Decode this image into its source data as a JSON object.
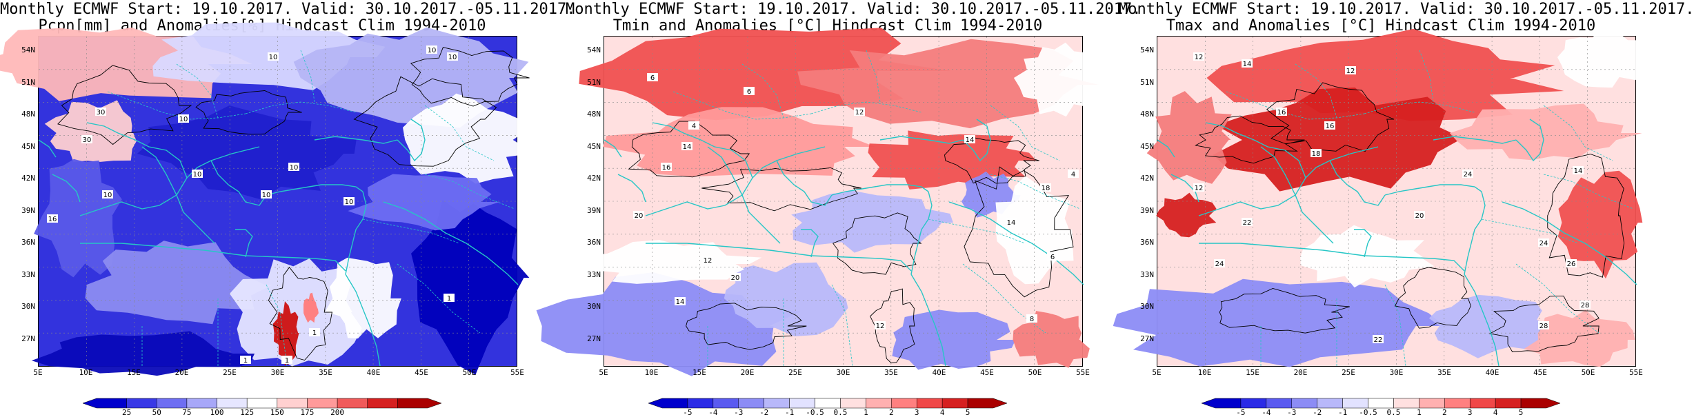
{
  "panels": [
    {
      "id": "pcpn",
      "title_line1": "Monthly ECMWF Start: 19.10.2017. Valid: 30.10.2017.-05.11.2017.",
      "title_line2": "Pcpn[mm] and Anomalies[%] Hindcast Clim 1994-2010",
      "lat_labels": [
        "54N",
        "51N",
        "48N",
        "45N",
        "42N",
        "39N",
        "36N",
        "33N",
        "30N",
        "27N"
      ],
      "lon_labels": [
        "5E",
        "10E",
        "15E",
        "20E",
        "25E",
        "30E",
        "35E",
        "40E",
        "45E",
        "50E",
        "55E"
      ],
      "colorbar_labels": [
        "25",
        "50",
        "75",
        "100",
        "125",
        "150",
        "175",
        "200"
      ],
      "colorbar_colors": [
        "#0000cc",
        "#3838e6",
        "#6e6ef2",
        "#a7a7f8",
        "#e6e6ff",
        "#ffffff",
        "#ffd0d0",
        "#ff9a9a",
        "#f05a5a",
        "#d62020",
        "#aa0000"
      ],
      "contour_labels": [
        "10",
        "30",
        "30",
        "10",
        "10",
        "10",
        "10",
        "10",
        "16",
        "10",
        "10",
        "1",
        "1",
        "1",
        "1",
        "10"
      ]
    },
    {
      "id": "tmin",
      "title_line1": "Monthly ECMWF Start: 19.10.2017. Valid: 30.10.2017.-05.11.2017.",
      "title_line2": "Tmin and Anomalies [°C] Hindcast Clim 1994-2010",
      "lat_labels": [
        "54N",
        "51N",
        "48N",
        "45N",
        "42N",
        "39N",
        "36N",
        "33N",
        "30N",
        "27N"
      ],
      "lon_labels": [
        "5E",
        "10E",
        "15E",
        "20E",
        "25E",
        "30E",
        "35E",
        "40E",
        "45E",
        "50E",
        "55E"
      ],
      "colorbar_labels": [
        "-5",
        "-4",
        "-3",
        "-2",
        "-1",
        "-0.5",
        "0.5",
        "1",
        "2",
        "3",
        "4",
        "5"
      ],
      "colorbar_colors": [
        "#0000cc",
        "#2b2be6",
        "#5a5af0",
        "#8c8cf5",
        "#b8b8fa",
        "#e2e2ff",
        "#ffffff",
        "#ffe0e0",
        "#ffb0b0",
        "#ff8080",
        "#f04848",
        "#d62020",
        "#aa0000"
      ],
      "contour_labels": [
        "6",
        "6",
        "4",
        "12",
        "14",
        "16",
        "20",
        "12",
        "14",
        "20",
        "12",
        "14",
        "18",
        "14",
        "4",
        "6",
        "8"
      ]
    },
    {
      "id": "tmax",
      "title_line1": "Monthly ECMWF Start: 19.10.2017. Valid: 30.10.2017.-05.11.2017.",
      "title_line2": "Tmax and Anomalies [°C] Hindcast Clim 1994-2010",
      "lat_labels": [
        "54N",
        "51N",
        "48N",
        "45N",
        "42N",
        "39N",
        "36N",
        "33N",
        "30N",
        "27N"
      ],
      "lon_labels": [
        "5E",
        "10E",
        "15E",
        "20E",
        "25E",
        "30E",
        "35E",
        "40E",
        "45E",
        "50E",
        "55E"
      ],
      "colorbar_labels": [
        "-5",
        "-4",
        "-3",
        "-2",
        "-1",
        "-0.5",
        "0.5",
        "1",
        "2",
        "3",
        "4",
        "5"
      ],
      "colorbar_colors": [
        "#0000cc",
        "#2b2be6",
        "#5a5af0",
        "#8c8cf5",
        "#b8b8fa",
        "#e2e2ff",
        "#ffffff",
        "#ffe0e0",
        "#ffb0b0",
        "#ff8080",
        "#f04848",
        "#d62020",
        "#aa0000"
      ],
      "contour_labels": [
        "12",
        "14",
        "16",
        "12",
        "16",
        "18",
        "20",
        "22",
        "24",
        "22",
        "24",
        "26",
        "28",
        "28",
        "24",
        "14",
        "12"
      ]
    }
  ],
  "colors": {
    "coastline": "#26c6c6",
    "contour": "#000000",
    "grid": "#888888"
  }
}
